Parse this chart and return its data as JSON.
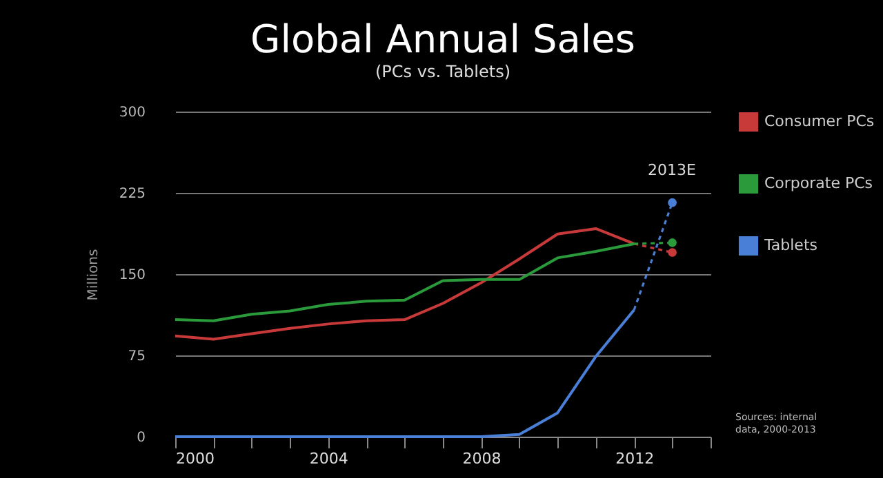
{
  "chart_data": {
    "type": "line",
    "title": "Global Annual Sales",
    "subtitle": "(PCs vs. Tablets)",
    "ylabel": "Millions",
    "xlim": [
      2000,
      2014
    ],
    "xticks": [
      2000,
      {
        "value": 2001,
        "label": null
      },
      {
        "value": 2002,
        "label": null
      },
      {
        "value": 2003,
        "label": null
      },
      2004,
      {
        "value": 2005,
        "label": null
      },
      {
        "value": 2006,
        "label": null
      },
      {
        "value": 2007,
        "label": null
      },
      2008,
      {
        "value": 2009,
        "label": null
      },
      {
        "value": 2010,
        "label": null
      },
      {
        "value": 2011,
        "label": null
      },
      2012,
      {
        "value": 2013,
        "label": null
      },
      {
        "value": 2014,
        "label": null
      }
    ],
    "ylim": [
      0,
      300
    ],
    "yticks": [
      0,
      75,
      150,
      225,
      300
    ],
    "grid": "y",
    "legend": "top right",
    "marker": "none",
    "series": [
      {
        "name": "Consumer PCs",
        "color": "#c83a3a",
        "line_style": "solid",
        "x": [
          2000,
          2001,
          2002,
          2003,
          2004,
          2005,
          2006,
          2007,
          2008,
          2009,
          2010,
          2011,
          2012
        ],
        "values": [
          93,
          90,
          95,
          100,
          104,
          107,
          108,
          123,
          142,
          164,
          187,
          192,
          178
        ]
      },
      {
        "name": "Corporate PCs",
        "color": "#2a9a3a",
        "line_style": "solid",
        "x": [
          2000,
          2001,
          2002,
          2003,
          2004,
          2005,
          2006,
          2007,
          2008,
          2009,
          2010,
          2011,
          2012
        ],
        "values": [
          108,
          107,
          113,
          116,
          122,
          125,
          126,
          144,
          145,
          145,
          165,
          171,
          178
        ]
      },
      {
        "name": "Tablets",
        "color": "#4a7fd8",
        "line_style": "solid",
        "x": [
          2000,
          2001,
          2002,
          2003,
          2004,
          2005,
          2006,
          2007,
          2008,
          2009,
          2010,
          2011,
          2012
        ],
        "values": [
          0,
          0,
          0,
          0,
          0,
          0,
          0,
          0,
          0,
          2,
          22,
          74,
          117
        ]
      },
      {
        "color": "#c83a3a",
        "line_style": "dashed",
        "x": [
          2012,
          2013
        ],
        "values": [
          178,
          170
        ]
      },
      {
        "color": "#2a9a3a",
        "line_style": "dashed",
        "x": [
          2012,
          2013
        ],
        "values": [
          178,
          179
        ]
      },
      {
        "color": "#4a7fd8",
        "line_style": "dashed",
        "x": [
          2012,
          2013
        ],
        "values": [
          117,
          216
        ]
      },
      {
        "type": "scatter",
        "color": "#c83a3a",
        "marker": "circle",
        "x": [
          2013
        ],
        "values": [
          170
        ]
      },
      {
        "type": "scatter",
        "color": "#2a9a3a",
        "marker": "circle",
        "x": [
          2013
        ],
        "values": [
          179
        ]
      },
      {
        "type": "scatter",
        "color": "#4a7fd8",
        "marker": "circle",
        "x": [
          2013
        ],
        "values": [
          216
        ]
      }
    ],
    "annotations": [
      "2013E",
      "Sources: internal data, 2000-2013"
    ]
  }
}
